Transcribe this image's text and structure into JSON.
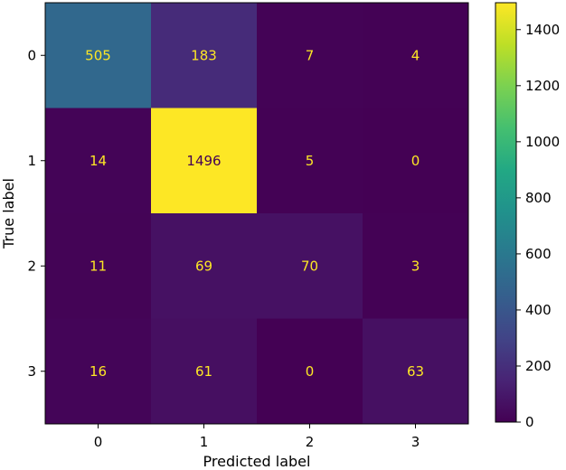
{
  "chart_data": {
    "type": "heatmap",
    "title": "",
    "xlabel": "Predicted label",
    "ylabel": "True label",
    "x_categories": [
      "0",
      "1",
      "2",
      "3"
    ],
    "y_categories": [
      "0",
      "1",
      "2",
      "3"
    ],
    "values": [
      [
        505,
        183,
        7,
        4
      ],
      [
        14,
        1496,
        5,
        0
      ],
      [
        11,
        69,
        70,
        3
      ],
      [
        16,
        61,
        0,
        63
      ]
    ],
    "colormap": "viridis",
    "colorbar": {
      "range": [
        0,
        1496
      ],
      "ticks": [
        "0",
        "200",
        "400",
        "600",
        "800",
        "1000",
        "1200",
        "1400"
      ]
    },
    "label_colors": {
      "on_dark": "#fde725",
      "on_light": "#440154"
    }
  }
}
